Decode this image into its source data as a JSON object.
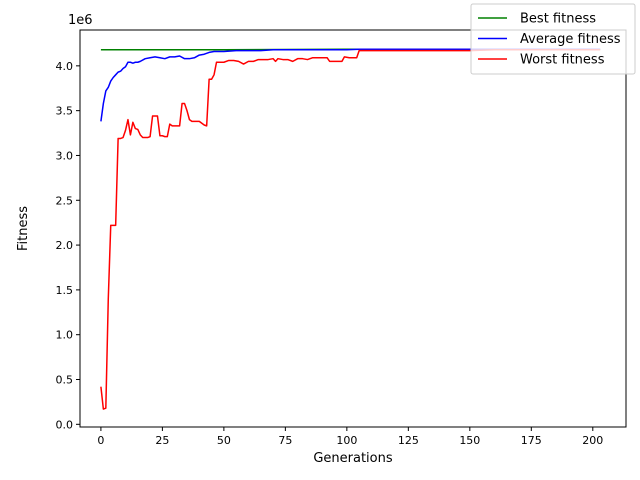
{
  "chart_data": {
    "type": "line",
    "title": "",
    "xlabel": "Generations",
    "ylabel": "Fitness",
    "y_offset_label": "1e6",
    "xlim": [
      -8.5,
      213.5
    ],
    "ylim": [
      -0.03,
      4.4
    ],
    "x_ticks": [
      0,
      25,
      50,
      75,
      100,
      125,
      150,
      175,
      200
    ],
    "x_tick_labels": [
      "0",
      "25",
      "50",
      "75",
      "100",
      "125",
      "150",
      "175",
      "200"
    ],
    "y_ticks": [
      0.0,
      0.5,
      1.0,
      1.5,
      2.0,
      2.5,
      3.0,
      3.5,
      4.0
    ],
    "y_tick_labels": [
      "0.0",
      "0.5",
      "1.0",
      "1.5",
      "2.0",
      "2.5",
      "3.0",
      "3.5",
      "4.0"
    ],
    "grid": false,
    "legend_position": "top-right",
    "series": [
      {
        "name": "Best fitness",
        "color": "#008000",
        "points": [
          [
            0,
            4.18
          ],
          [
            50,
            4.18
          ],
          [
            100,
            4.185
          ],
          [
            150,
            4.185
          ],
          [
            203,
            4.185
          ]
        ]
      },
      {
        "name": "Average fitness",
        "color": "#0000ff",
        "points": [
          [
            0,
            3.38
          ],
          [
            1,
            3.58
          ],
          [
            2,
            3.72
          ],
          [
            3,
            3.76
          ],
          [
            4,
            3.83
          ],
          [
            5,
            3.87
          ],
          [
            6,
            3.9
          ],
          [
            7,
            3.93
          ],
          [
            8,
            3.94
          ],
          [
            9,
            3.97
          ],
          [
            10,
            3.99
          ],
          [
            11,
            4.04
          ],
          [
            12,
            4.04
          ],
          [
            13,
            4.03
          ],
          [
            14,
            4.04
          ],
          [
            15,
            4.04
          ],
          [
            16,
            4.05
          ],
          [
            18,
            4.08
          ],
          [
            20,
            4.09
          ],
          [
            22,
            4.1
          ],
          [
            24,
            4.09
          ],
          [
            26,
            4.08
          ],
          [
            28,
            4.1
          ],
          [
            30,
            4.1
          ],
          [
            32,
            4.11
          ],
          [
            34,
            4.08
          ],
          [
            36,
            4.08
          ],
          [
            38,
            4.09
          ],
          [
            40,
            4.12
          ],
          [
            42,
            4.13
          ],
          [
            44,
            4.15
          ],
          [
            46,
            4.16
          ],
          [
            50,
            4.16
          ],
          [
            55,
            4.17
          ],
          [
            60,
            4.17
          ],
          [
            65,
            4.17
          ],
          [
            70,
            4.18
          ],
          [
            80,
            4.18
          ],
          [
            90,
            4.18
          ],
          [
            100,
            4.18
          ],
          [
            105,
            4.185
          ],
          [
            150,
            4.185
          ],
          [
            203,
            4.185
          ]
        ]
      },
      {
        "name": "Worst fitness",
        "color": "#ff0000",
        "points": [
          [
            0,
            0.42
          ],
          [
            1,
            0.17
          ],
          [
            2,
            0.18
          ],
          [
            3,
            1.4
          ],
          [
            4,
            2.22
          ],
          [
            5,
            2.22
          ],
          [
            6,
            2.22
          ],
          [
            7,
            3.19
          ],
          [
            8,
            3.19
          ],
          [
            9,
            3.2
          ],
          [
            10,
            3.28
          ],
          [
            11,
            3.4
          ],
          [
            12,
            3.23
          ],
          [
            13,
            3.37
          ],
          [
            14,
            3.3
          ],
          [
            15,
            3.29
          ],
          [
            16,
            3.23
          ],
          [
            17,
            3.2
          ],
          [
            18,
            3.2
          ],
          [
            19,
            3.2
          ],
          [
            20,
            3.21
          ],
          [
            21,
            3.44
          ],
          [
            22,
            3.44
          ],
          [
            23,
            3.44
          ],
          [
            24,
            3.22
          ],
          [
            25,
            3.22
          ],
          [
            26,
            3.21
          ],
          [
            27,
            3.21
          ],
          [
            28,
            3.35
          ],
          [
            29,
            3.33
          ],
          [
            30,
            3.33
          ],
          [
            32,
            3.33
          ],
          [
            33,
            3.58
          ],
          [
            34,
            3.58
          ],
          [
            35,
            3.5
          ],
          [
            36,
            3.4
          ],
          [
            37,
            3.38
          ],
          [
            38,
            3.38
          ],
          [
            40,
            3.38
          ],
          [
            42,
            3.34
          ],
          [
            43,
            3.33
          ],
          [
            44,
            3.85
          ],
          [
            45,
            3.85
          ],
          [
            46,
            3.9
          ],
          [
            47,
            4.04
          ],
          [
            48,
            4.04
          ],
          [
            50,
            4.04
          ],
          [
            52,
            4.06
          ],
          [
            54,
            4.06
          ],
          [
            56,
            4.05
          ],
          [
            58,
            4.02
          ],
          [
            60,
            4.05
          ],
          [
            62,
            4.05
          ],
          [
            64,
            4.07
          ],
          [
            66,
            4.07
          ],
          [
            68,
            4.07
          ],
          [
            70,
            4.08
          ],
          [
            71,
            4.05
          ],
          [
            72,
            4.08
          ],
          [
            74,
            4.07
          ],
          [
            76,
            4.07
          ],
          [
            78,
            4.05
          ],
          [
            80,
            4.08
          ],
          [
            82,
            4.08
          ],
          [
            84,
            4.07
          ],
          [
            86,
            4.09
          ],
          [
            88,
            4.09
          ],
          [
            90,
            4.09
          ],
          [
            92,
            4.09
          ],
          [
            93,
            4.05
          ],
          [
            96,
            4.05
          ],
          [
            98,
            4.05
          ],
          [
            99,
            4.1
          ],
          [
            101,
            4.09
          ],
          [
            104,
            4.09
          ],
          [
            105,
            4.17
          ],
          [
            110,
            4.17
          ],
          [
            150,
            4.17
          ],
          [
            160,
            4.18
          ],
          [
            203,
            4.18
          ]
        ]
      }
    ]
  }
}
